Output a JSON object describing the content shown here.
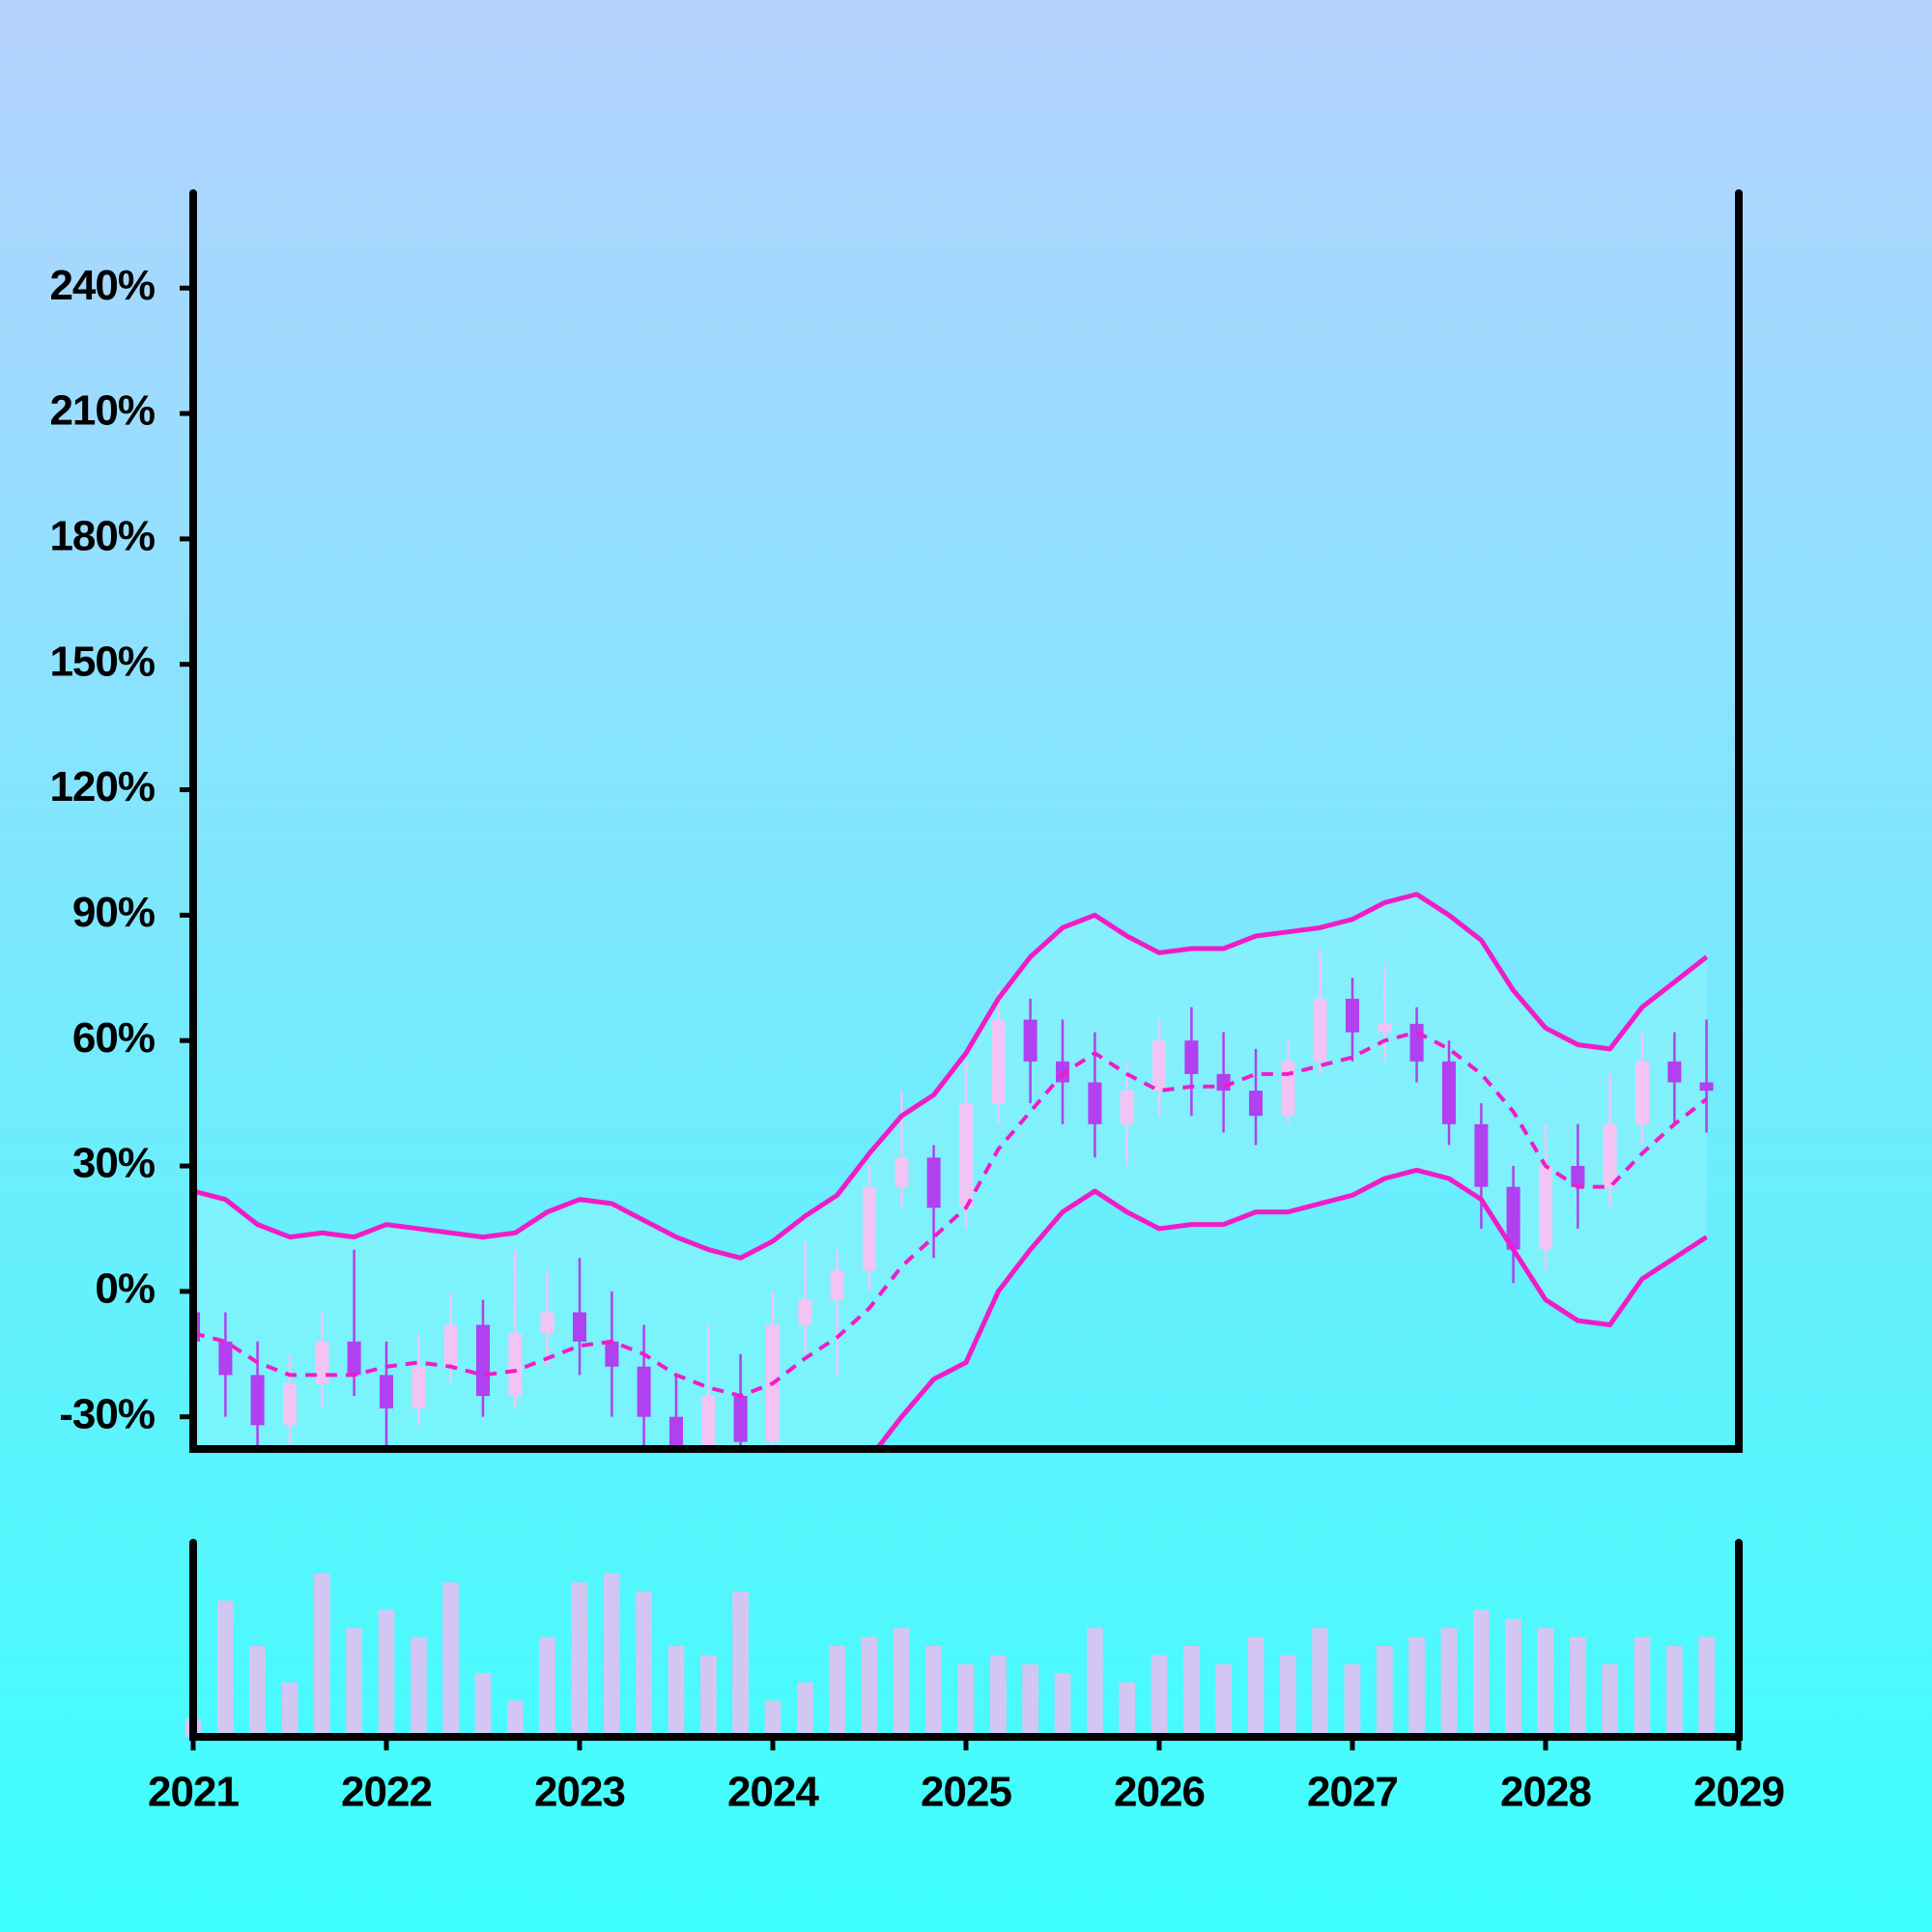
{
  "chart_data": [
    {
      "type": "candlestick",
      "x": [
        2021.0,
        2021.167,
        2021.333,
        2021.5,
        2021.667,
        2021.833,
        2022.0,
        2022.167,
        2022.333,
        2022.5,
        2022.667,
        2022.833,
        2023.0,
        2023.167,
        2023.333,
        2023.5,
        2023.667,
        2023.833,
        2024.0,
        2024.167,
        2024.333,
        2024.5,
        2024.667,
        2024.833,
        2025.0,
        2025.167,
        2025.333,
        2025.5,
        2025.667,
        2025.833,
        2026.0,
        2026.167,
        2026.333,
        2026.5,
        2026.667,
        2026.833,
        2027.0,
        2027.167,
        2027.333,
        2027.5,
        2027.667,
        2027.833,
        2028.0,
        2028.167,
        2028.333,
        2028.5,
        2028.667,
        2028.833
      ],
      "open": [
        -5,
        -12,
        -20,
        -32,
        -22,
        -12,
        -20,
        -28,
        -18,
        -8,
        -25,
        -10,
        -5,
        -12,
        -18,
        -30,
        -38,
        -25,
        -36,
        -8,
        -2,
        5,
        25,
        32,
        20,
        45,
        65,
        55,
        50,
        40,
        48,
        60,
        52,
        48,
        42,
        55,
        70,
        62,
        64,
        55,
        40,
        25,
        10,
        30,
        25,
        40,
        55,
        50
      ],
      "high": [
        2,
        -5,
        -12,
        -15,
        -5,
        10,
        -12,
        -10,
        0,
        -2,
        10,
        5,
        8,
        0,
        -8,
        -20,
        -8,
        -15,
        0,
        12,
        10,
        30,
        48,
        35,
        55,
        72,
        70,
        65,
        62,
        55,
        65,
        68,
        62,
        58,
        60,
        82,
        75,
        78,
        68,
        60,
        45,
        30,
        40,
        40,
        52,
        62,
        62,
        65
      ],
      "low": [
        -20,
        -30,
        -40,
        -38,
        -28,
        -25,
        -38,
        -32,
        -22,
        -30,
        -28,
        -18,
        -20,
        -30,
        -40,
        -45,
        -42,
        -44,
        -40,
        -15,
        -20,
        0,
        20,
        8,
        15,
        40,
        45,
        40,
        32,
        30,
        42,
        42,
        38,
        35,
        40,
        52,
        55,
        55,
        50,
        35,
        15,
        2,
        5,
        15,
        20,
        35,
        40,
        38
      ],
      "close": [
        -12,
        -20,
        -32,
        -22,
        -12,
        -20,
        -28,
        -18,
        -8,
        -25,
        -10,
        -5,
        -12,
        -18,
        -30,
        -38,
        -25,
        -36,
        -8,
        -2,
        5,
        25,
        32,
        20,
        45,
        65,
        55,
        50,
        40,
        48,
        60,
        52,
        48,
        42,
        55,
        70,
        62,
        64,
        55,
        40,
        25,
        10,
        30,
        25,
        40,
        55,
        50,
        48
      ],
      "upper": [
        24,
        22,
        16,
        13,
        14,
        13,
        16,
        15,
        14,
        13,
        14,
        19,
        22,
        21,
        17,
        13,
        10,
        8,
        12,
        18,
        23,
        33,
        42,
        47,
        57,
        70,
        80,
        87,
        90,
        85,
        81,
        82,
        82,
        85,
        86,
        87,
        89,
        93,
        95,
        90,
        84,
        72,
        63,
        59,
        58,
        68,
        74,
        80
      ],
      "middle": [
        -10,
        -12,
        -17,
        -20,
        -20,
        -20,
        -18,
        -17,
        -18,
        -20,
        -19,
        -16,
        -13,
        -12,
        -15,
        -20,
        -23,
        -25,
        -22,
        -16,
        -11,
        -4,
        6,
        13,
        20,
        34,
        43,
        52,
        57,
        52,
        48,
        49,
        49,
        52,
        52,
        54,
        56,
        60,
        62,
        58,
        52,
        43,
        30,
        25,
        25,
        33,
        40,
        46
      ],
      "lower": [
        -44,
        -46,
        -50,
        -53,
        -54,
        -53,
        -52,
        -49,
        -50,
        -53,
        -52,
        -51,
        -48,
        -45,
        -47,
        -53,
        -56,
        -58,
        -56,
        -50,
        -45,
        -40,
        -30,
        -21,
        -17,
        0,
        10,
        19,
        24,
        19,
        15,
        16,
        16,
        19,
        19,
        21,
        23,
        27,
        29,
        27,
        22,
        10,
        -2,
        -7,
        -8,
        3,
        8,
        13
      ],
      "up_color": "#f2c4f4",
      "down_color": "#b040f0",
      "band_color": "#f01cc8",
      "band_fill": "#90f4fa",
      "xlim": [
        2021,
        2029
      ],
      "ylim": [
        -37.7,
        262.7
      ],
      "yticks": [
        {
          "value": -30,
          "label": "-30%"
        },
        {
          "value": 0,
          "label": "0%"
        },
        {
          "value": 30,
          "label": "30%"
        },
        {
          "value": 60,
          "label": "60%"
        },
        {
          "value": 90,
          "label": "90%"
        },
        {
          "value": 120,
          "label": "120%"
        },
        {
          "value": 150,
          "label": "150%"
        },
        {
          "value": 180,
          "label": "180%"
        },
        {
          "value": 210,
          "label": "210%"
        },
        {
          "value": 240,
          "label": "240%"
        }
      ]
    },
    {
      "type": "bar",
      "x": [
        2021.0,
        2021.167,
        2021.333,
        2021.5,
        2021.667,
        2021.833,
        2022.0,
        2022.167,
        2022.333,
        2022.5,
        2022.667,
        2022.833,
        2023.0,
        2023.167,
        2023.333,
        2023.5,
        2023.667,
        2023.833,
        2024.0,
        2024.167,
        2024.333,
        2024.5,
        2024.667,
        2024.833,
        2025.0,
        2025.167,
        2025.333,
        2025.5,
        2025.667,
        2025.833,
        2026.0,
        2026.167,
        2026.333,
        2026.5,
        2026.667,
        2026.833,
        2027.0,
        2027.167,
        2027.333,
        2027.5,
        2027.667,
        2027.833,
        2028.0,
        2028.167,
        2028.333,
        2028.5,
        2028.667,
        2028.833
      ],
      "values": [
        10,
        75,
        50,
        30,
        90,
        60,
        70,
        55,
        85,
        35,
        20,
        55,
        85,
        90,
        80,
        50,
        45,
        80,
        20,
        30,
        50,
        55,
        60,
        50,
        40,
        45,
        40,
        35,
        60,
        30,
        45,
        50,
        40,
        55,
        45,
        60,
        40,
        50,
        55,
        60,
        70,
        65,
        60,
        55,
        40,
        55,
        50,
        55
      ],
      "color": "#d4c6f2",
      "xlim": [
        2021,
        2029
      ],
      "ylim": [
        0,
        100
      ],
      "xticks": [
        2021,
        2022,
        2023,
        2024,
        2025,
        2026,
        2027,
        2028,
        2029
      ]
    }
  ]
}
